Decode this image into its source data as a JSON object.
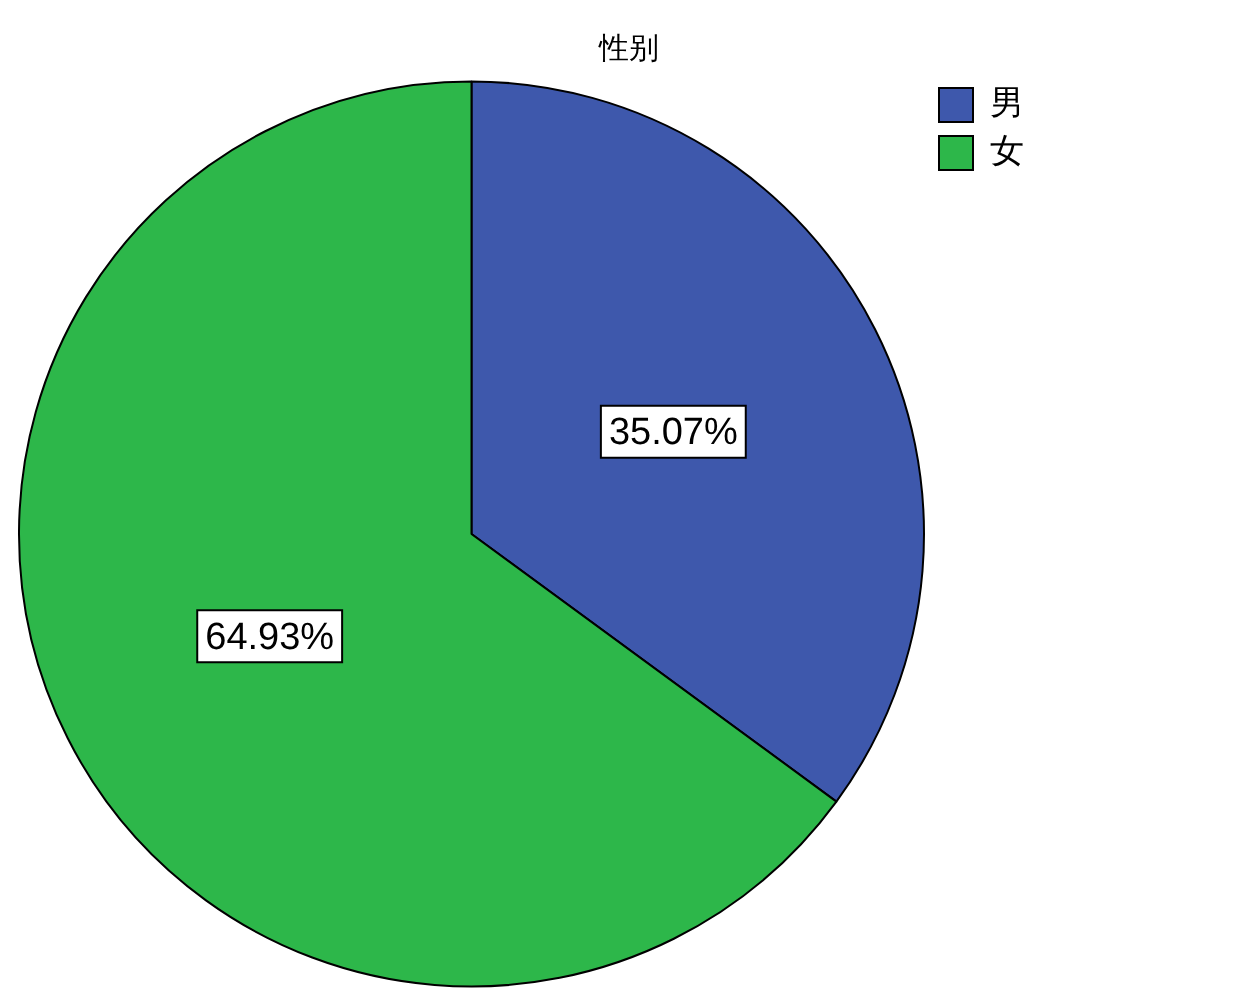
{
  "chart_data": {
    "type": "pie",
    "title": "性别",
    "categories": [
      "男",
      "女"
    ],
    "values": [
      35.07,
      64.93
    ],
    "colors": [
      "#3e58ac",
      "#2db74a"
    ],
    "value_labels": [
      "35.07%",
      "64.93%"
    ],
    "legend": "top right"
  }
}
